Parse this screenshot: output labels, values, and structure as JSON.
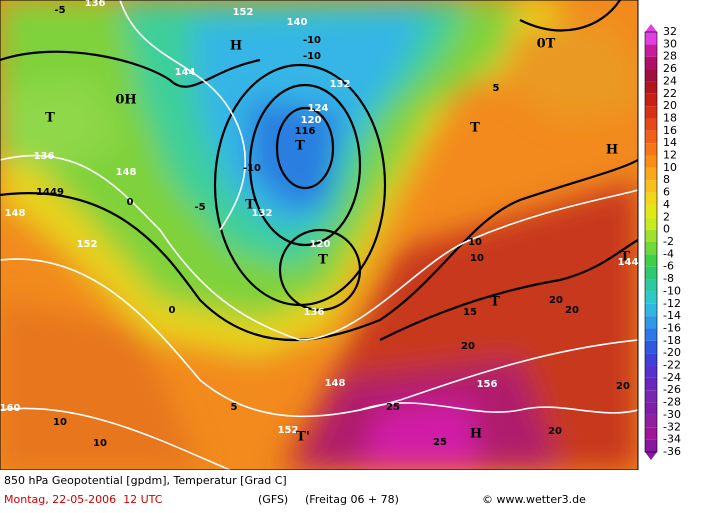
{
  "footer": {
    "line1": "850 hPa Geopotential [gpdm], Temperatur [Grad C]",
    "date": "Montag, 22-05-2006  12 UTC",
    "model": "(GFS)",
    "run": "(Freitag 06 + 78)",
    "credit": "© www.wetter3.de"
  },
  "colorbar": {
    "labels": [
      32,
      30,
      28,
      26,
      24,
      22,
      20,
      18,
      16,
      14,
      12,
      10,
      8,
      6,
      4,
      2,
      0,
      -2,
      -4,
      -6,
      -8,
      -10,
      -12,
      -14,
      -16,
      -18,
      -20,
      -22,
      -24,
      -26,
      -28,
      -30,
      -32,
      -34,
      -36
    ]
  },
  "map": {
    "labels": [
      "-5",
      "136",
      "H",
      "152",
      "140",
      "-10",
      "144",
      "0T",
      "-10",
      "132",
      "0H",
      "T",
      "136",
      "5",
      "T",
      "124",
      "120",
      "116",
      "T",
      "H",
      "148",
      "1449",
      "148",
      "0",
      "-5",
      "T",
      "132",
      "-10",
      "120",
      "T",
      "152",
      "10",
      "10",
      "T",
      "144",
      "0",
      "5",
      "15",
      "20",
      "20",
      "20",
      "148",
      "156",
      "25",
      "25",
      "H",
      "20",
      "10",
      "10",
      "160",
      "152",
      "T'",
      "20",
      "T",
      "136"
    ]
  }
}
